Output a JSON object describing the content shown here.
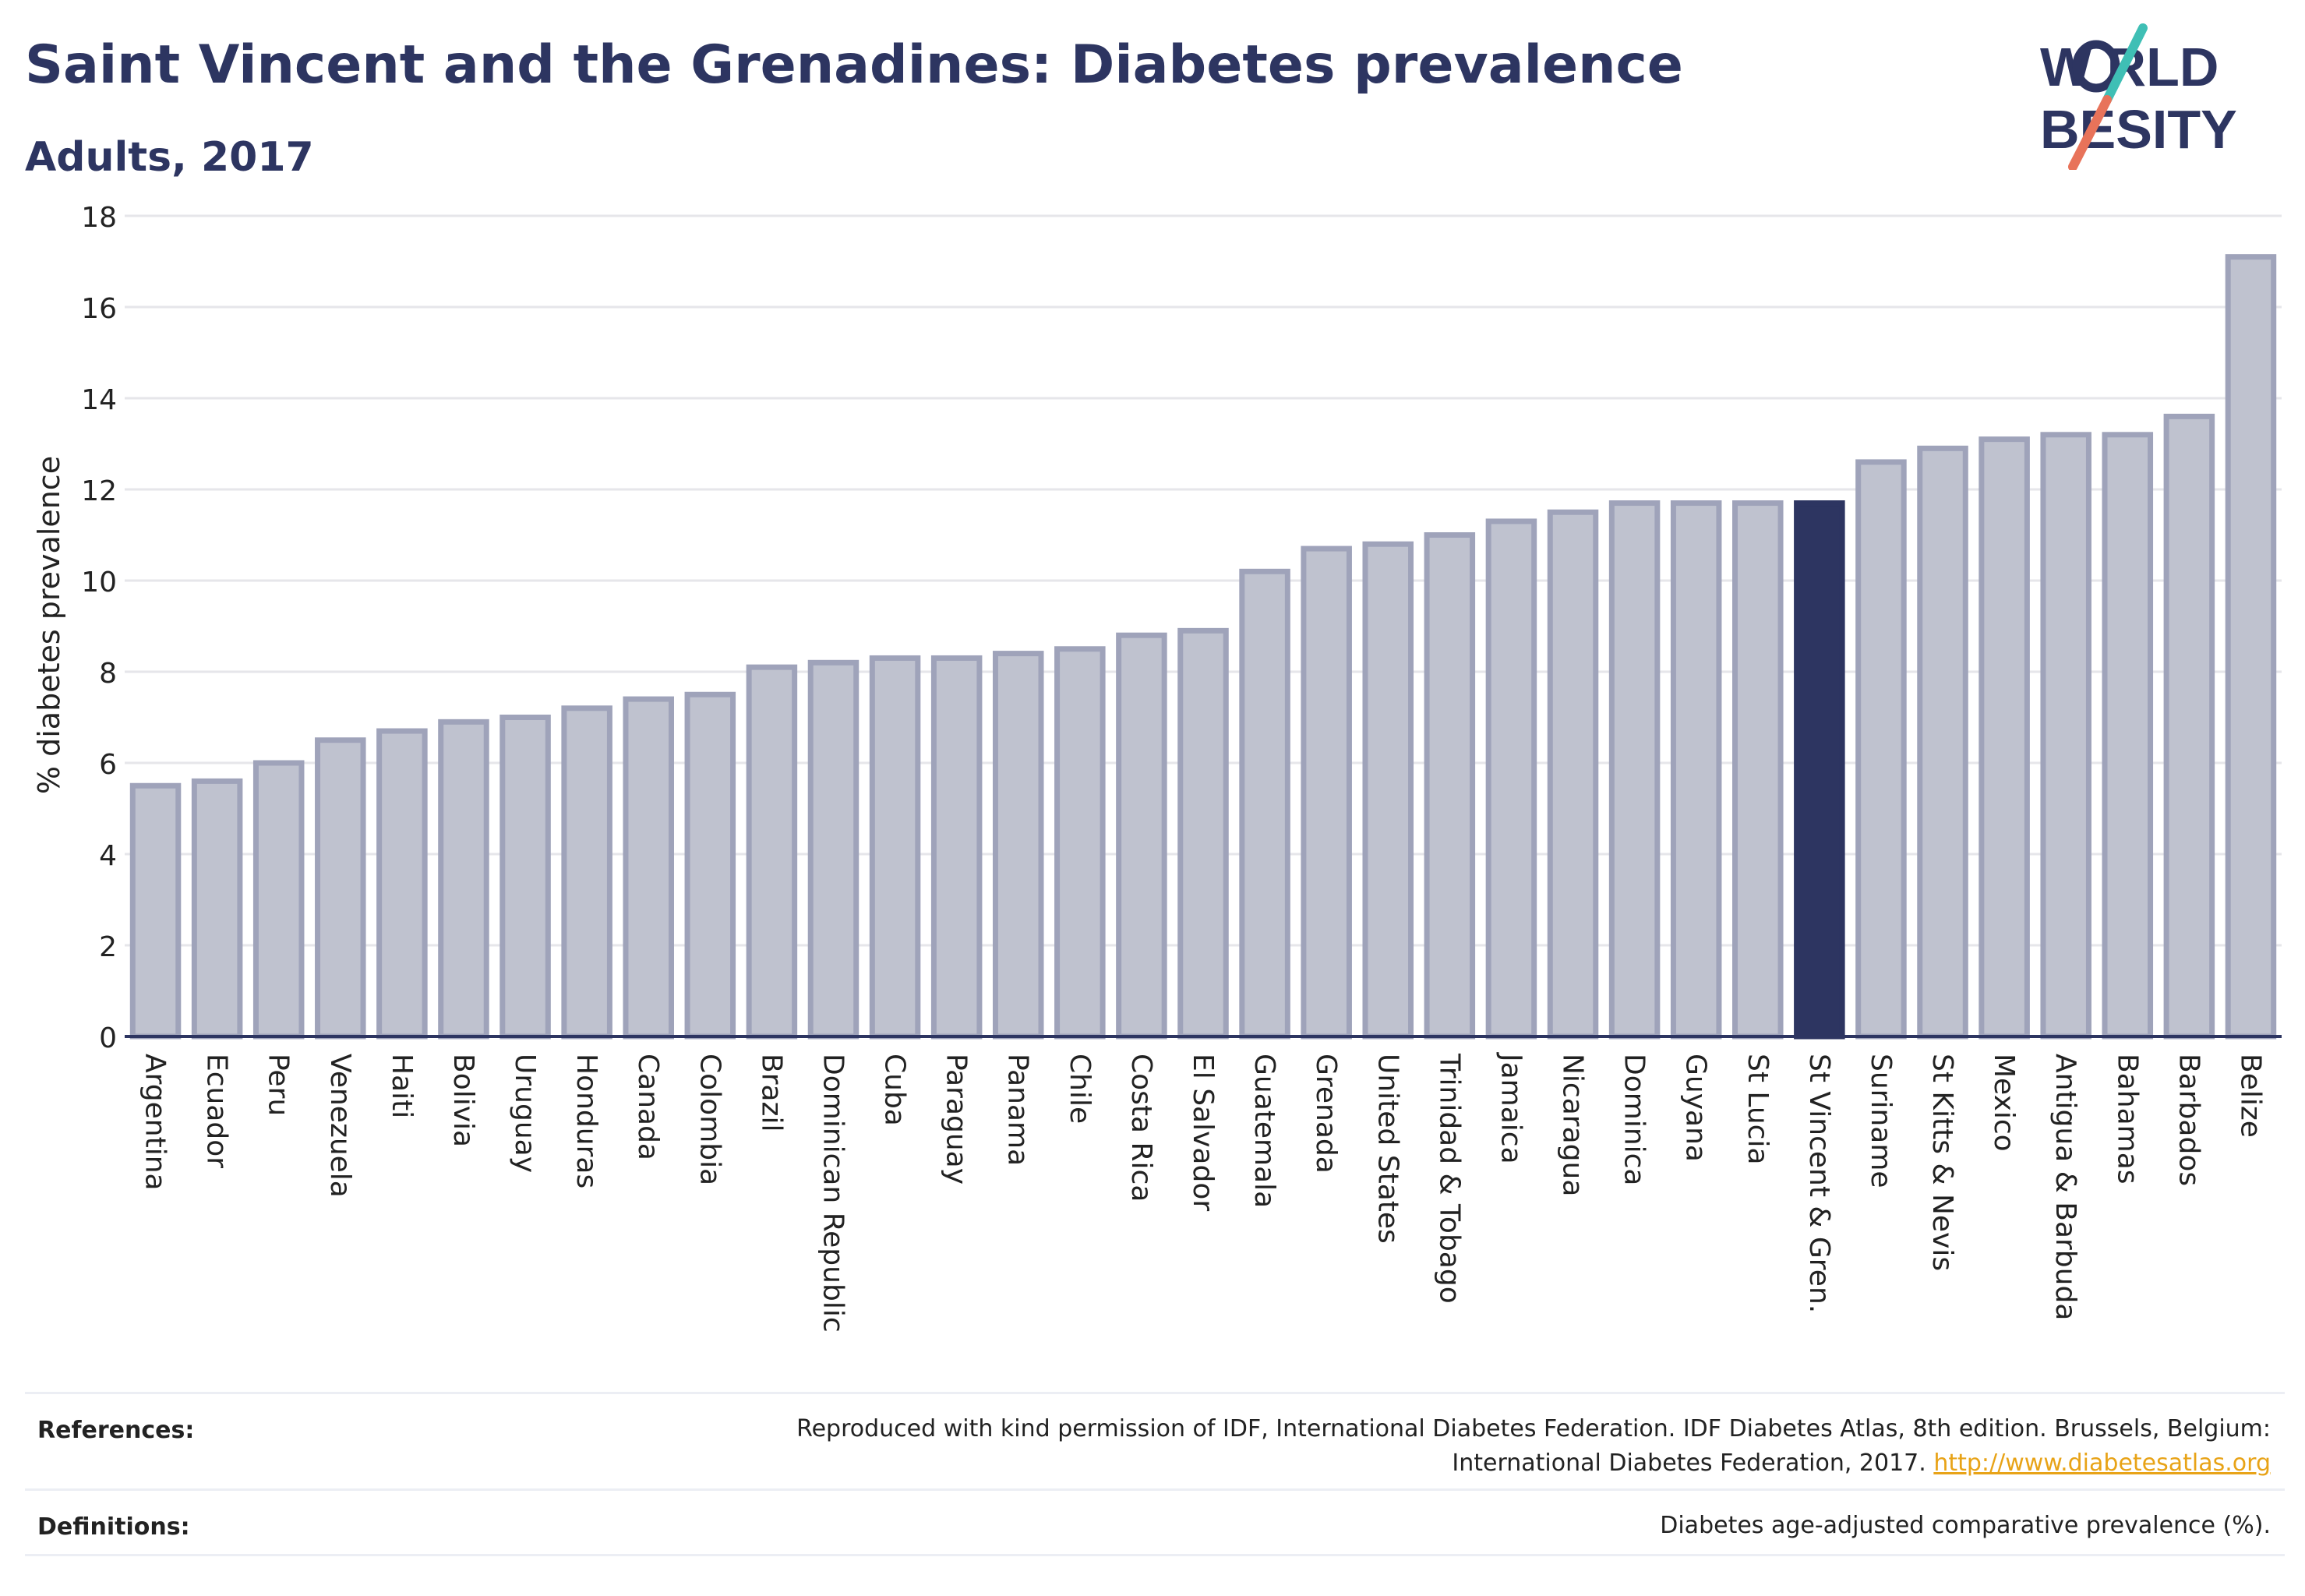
{
  "header": {
    "title": "Saint Vincent and the Grenadines: Diabetes prevalence",
    "subtitle": "Adults, 2017"
  },
  "logo": {
    "line1": "W RLD",
    "line2": "BESITY",
    "text": "WORLD OBESITY",
    "colors": {
      "text": "#2d3561",
      "slash_teal": "#3fbfb5",
      "slash_coral": "#e8735a"
    }
  },
  "chart_data": {
    "type": "bar",
    "ylabel": "% diabetes prevalence",
    "xlabel": "",
    "ylim": [
      0,
      18
    ],
    "yticks": [
      0,
      2,
      4,
      6,
      8,
      10,
      12,
      14,
      16,
      18
    ],
    "grid": true,
    "categories": [
      "Argentina",
      "Ecuador",
      "Peru",
      "Venezuela",
      "Haiti",
      "Bolivia",
      "Uruguay",
      "Honduras",
      "Canada",
      "Colombia",
      "Brazil",
      "Dominican Republic",
      "Cuba",
      "Paraguay",
      "Panama",
      "Chile",
      "Costa Rica",
      "El Salvador",
      "Guatemala",
      "Grenada",
      "United States",
      "Trinidad & Tobago",
      "Jamaica",
      "Nicaragua",
      "Dominica",
      "Guyana",
      "St Lucia",
      "St Vincent & Gren.",
      "Suriname",
      "St Kitts & Nevis",
      "Mexico",
      "Antigua & Barbuda",
      "Bahamas",
      "Barbados",
      "Belize"
    ],
    "values": [
      5.5,
      5.6,
      6.0,
      6.5,
      6.7,
      6.9,
      7.0,
      7.2,
      7.4,
      7.5,
      8.1,
      8.2,
      8.3,
      8.3,
      8.4,
      8.5,
      8.8,
      8.9,
      10.2,
      10.7,
      10.8,
      11.0,
      11.3,
      11.5,
      11.7,
      11.7,
      11.7,
      11.7,
      12.6,
      12.9,
      13.1,
      13.2,
      13.2,
      13.6,
      17.1
    ],
    "highlight": "St Vincent & Gren.",
    "colors": {
      "bar": "#bfc2cf",
      "bar_border": "#9fa3ba",
      "highlight": "#2d3561",
      "grid": "#e6e6ea",
      "axis": "#2d3561"
    }
  },
  "footer": {
    "references_label": "References:",
    "references_text": "Reproduced with kind permission of IDF, International Diabetes Federation. IDF Diabetes Atlas, 8th edition. Brussels, Belgium: International Diabetes Federation, 2017.",
    "references_link": "http://www.diabetesatlas.org",
    "definitions_label": "Definitions:",
    "definitions_text": "Diabetes age-adjusted comparative prevalence (%)."
  }
}
